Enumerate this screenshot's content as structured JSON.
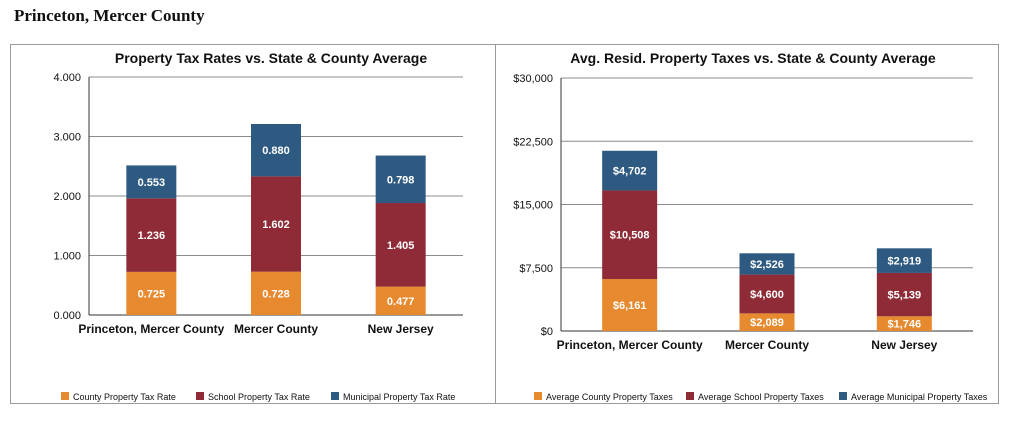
{
  "page": {
    "title": "Princeton, Mercer County"
  },
  "colors": {
    "county": "#E6892F",
    "school": "#8E2B36",
    "municipal": "#2E5A82",
    "grid": "#8c8c8c",
    "axis": "#333333"
  },
  "chart_data": [
    {
      "type": "bar",
      "stacked": true,
      "title": "Property Tax Rates vs. State & County Average",
      "categories": [
        "Princeton, Mercer County",
        "Mercer County",
        "New Jersey"
      ],
      "ylim": [
        0,
        4
      ],
      "yticks": [
        "0.000",
        "1.000",
        "2.000",
        "3.000",
        "4.000"
      ],
      "grid": true,
      "legend_position": "bottom",
      "series": [
        {
          "name": "County Property Tax Rate",
          "values": [
            0.725,
            0.728,
            0.477
          ],
          "labels": [
            "0.725",
            "0.728",
            "0.477"
          ],
          "color": "#E6892F"
        },
        {
          "name": "School Property Tax Rate",
          "values": [
            1.236,
            1.602,
            1.405
          ],
          "labels": [
            "1.236",
            "1.602",
            "1.405"
          ],
          "color": "#8E2B36"
        },
        {
          "name": "Municipal Property Tax Rate",
          "values": [
            0.553,
            0.88,
            0.798
          ],
          "labels": [
            "0.553",
            "0.880",
            "0.798"
          ],
          "color": "#2E5A82"
        }
      ]
    },
    {
      "type": "bar",
      "stacked": true,
      "title": "Avg. Resid. Property Taxes vs. State & County Average",
      "categories": [
        "Princeton, Mercer County",
        "Mercer County",
        "New Jersey"
      ],
      "ylim": [
        0,
        30000
      ],
      "yticks": [
        "$0",
        "$7,500",
        "$15,000",
        "$22,500",
        "$30,000"
      ],
      "grid": true,
      "legend_position": "bottom",
      "series": [
        {
          "name": "Average County Property Taxes",
          "values": [
            6161,
            2089,
            1746
          ],
          "labels": [
            "$6,161",
            "$2,089",
            "$1,746"
          ],
          "color": "#E6892F"
        },
        {
          "name": "Average School Property Taxes",
          "values": [
            10508,
            4600,
            5139
          ],
          "labels": [
            "$10,508",
            "$4,600",
            "$5,139"
          ],
          "color": "#8E2B36"
        },
        {
          "name": "Average Municipal Property Taxes",
          "values": [
            4702,
            2526,
            2919
          ],
          "labels": [
            "$4,702",
            "$2,526",
            "$2,919"
          ],
          "color": "#2E5A82"
        }
      ]
    }
  ]
}
